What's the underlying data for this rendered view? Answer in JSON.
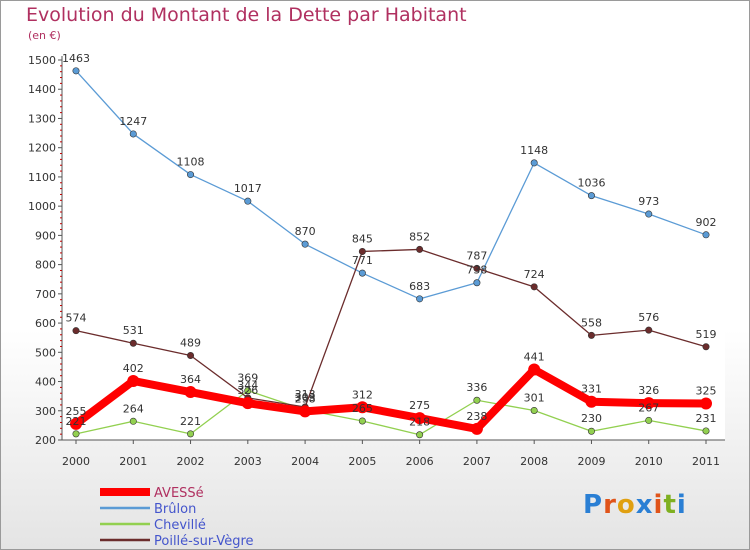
{
  "title": "Evolution du Montant de la Dette par Habitant",
  "unit_label": "(en €)",
  "logo": {
    "text": "Proxiti",
    "letter_colors": [
      "#2a7fd4",
      "#e0541a",
      "#e0a010",
      "#2a7fd4",
      "#e0541a",
      "#7fb020",
      "#2a7fd4"
    ]
  },
  "chart_data": {
    "type": "line",
    "title": "Evolution du Montant de la Dette par Habitant",
    "ylabel": "(en €)",
    "xlabel": "",
    "x": [
      "2000",
      "2001",
      "2002",
      "2003",
      "2004",
      "2005",
      "2006",
      "2007",
      "2008",
      "2009",
      "2010",
      "2011"
    ],
    "ylim": [
      200,
      1500
    ],
    "yticks": [
      200,
      300,
      400,
      500,
      600,
      700,
      800,
      900,
      1000,
      1100,
      1200,
      1300,
      1400,
      1500
    ],
    "legend_position": "bottom-left",
    "series": [
      {
        "name": "AVESSé",
        "color": "#ff0000",
        "emphasis": true,
        "values": [
          255,
          402,
          364,
          326,
          298,
          312,
          275,
          238,
          441,
          331,
          326,
          325
        ]
      },
      {
        "name": "Brûlon",
        "color": "#5b9bd5",
        "emphasis": false,
        "values": [
          1463,
          1247,
          1108,
          1017,
          870,
          771,
          683,
          738,
          1148,
          1036,
          973,
          902
        ]
      },
      {
        "name": "Chevillé",
        "color": "#92d050",
        "emphasis": false,
        "values": [
          221,
          264,
          221,
          369,
          303,
          265,
          218,
          336,
          301,
          230,
          267,
          231
        ]
      },
      {
        "name": "Poillé-sur-Vègre",
        "color": "#6b2c2c",
        "emphasis": false,
        "values": [
          574,
          531,
          489,
          344,
          313,
          845,
          852,
          787,
          724,
          558,
          576,
          519
        ]
      }
    ]
  }
}
